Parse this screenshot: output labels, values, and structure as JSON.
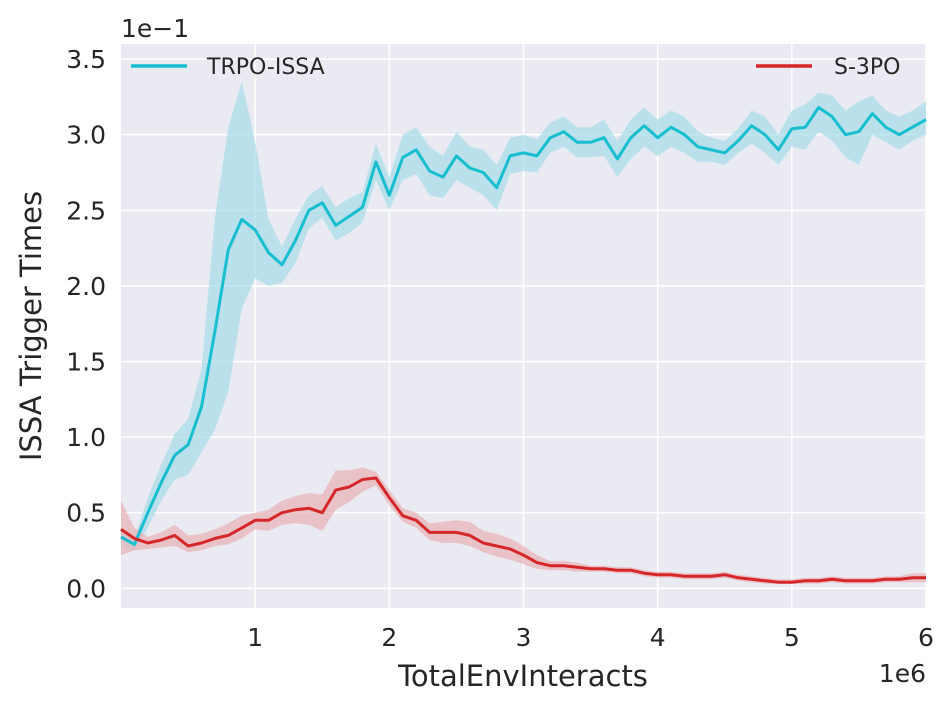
{
  "chart_data": {
    "type": "line",
    "xlabel": "TotalEnvInteracts",
    "ylabel": "ISSA Trigger Times",
    "x_multiplier": "1e6",
    "y_multiplier": "1e−1",
    "xlim": [
      0.0,
      6.0
    ],
    "ylim": [
      -0.13,
      3.6
    ],
    "x_ticks": [
      1,
      2,
      3,
      4,
      5,
      6
    ],
    "x_tick_labels": [
      "1",
      "2",
      "3",
      "4",
      "5",
      "6"
    ],
    "y_ticks": [
      0.0,
      0.5,
      1.0,
      1.5,
      2.0,
      2.5,
      3.0,
      3.5
    ],
    "y_tick_labels": [
      "0.0",
      "0.5",
      "1.0",
      "1.5",
      "2.0",
      "2.5",
      "3.0",
      "3.5"
    ],
    "grid": true,
    "legend": [
      {
        "name": "TRPO-ISSA",
        "placement": "top-left"
      },
      {
        "name": "S-3PO",
        "placement": "top-right"
      }
    ],
    "series": [
      {
        "name": "TRPO-ISSA",
        "color": "#17becf",
        "band_color": "#a9dde8",
        "x": [
          0.0,
          0.1,
          0.2,
          0.3,
          0.4,
          0.5,
          0.6,
          0.7,
          0.8,
          0.9,
          1.0,
          1.1,
          1.2,
          1.3,
          1.4,
          1.5,
          1.6,
          1.7,
          1.8,
          1.9,
          2.0,
          2.1,
          2.2,
          2.3,
          2.4,
          2.5,
          2.6,
          2.7,
          2.8,
          2.9,
          3.0,
          3.1,
          3.2,
          3.3,
          3.4,
          3.5,
          3.6,
          3.7,
          3.8,
          3.9,
          4.0,
          4.1,
          4.2,
          4.3,
          4.4,
          4.5,
          4.6,
          4.7,
          4.8,
          4.9,
          5.0,
          5.1,
          5.2,
          5.3,
          5.4,
          5.5,
          5.6,
          5.7,
          5.8,
          5.9,
          6.0
        ],
        "y": [
          0.34,
          0.29,
          0.5,
          0.7,
          0.88,
          0.95,
          1.2,
          1.7,
          2.24,
          2.44,
          2.37,
          2.22,
          2.14,
          2.3,
          2.5,
          2.55,
          2.4,
          2.46,
          2.52,
          2.82,
          2.6,
          2.85,
          2.9,
          2.76,
          2.72,
          2.86,
          2.78,
          2.75,
          2.65,
          2.86,
          2.88,
          2.86,
          2.98,
          3.02,
          2.95,
          2.95,
          2.98,
          2.84,
          2.98,
          3.06,
          2.98,
          3.05,
          3.0,
          2.92,
          2.9,
          2.88,
          2.96,
          3.06,
          3.0,
          2.9,
          3.04,
          3.05,
          3.18,
          3.12,
          3.0,
          3.02,
          3.14,
          3.05,
          3.0,
          3.05,
          3.1
        ],
        "y_lower": [
          0.28,
          0.25,
          0.4,
          0.58,
          0.72,
          0.75,
          0.9,
          1.05,
          1.3,
          1.85,
          2.05,
          2.0,
          2.02,
          2.15,
          2.38,
          2.45,
          2.3,
          2.35,
          2.42,
          2.7,
          2.5,
          2.7,
          2.74,
          2.6,
          2.58,
          2.7,
          2.65,
          2.6,
          2.5,
          2.74,
          2.76,
          2.75,
          2.88,
          2.92,
          2.85,
          2.85,
          2.86,
          2.72,
          2.84,
          2.92,
          2.86,
          2.92,
          2.88,
          2.82,
          2.82,
          2.8,
          2.88,
          2.94,
          2.88,
          2.8,
          2.92,
          2.9,
          3.02,
          2.96,
          2.85,
          2.8,
          3.0,
          2.95,
          2.9,
          2.96,
          3.0
        ],
        "y_upper": [
          0.4,
          0.33,
          0.6,
          0.82,
          1.02,
          1.12,
          1.45,
          2.45,
          3.05,
          3.35,
          2.95,
          2.44,
          2.26,
          2.44,
          2.6,
          2.66,
          2.52,
          2.58,
          2.62,
          2.94,
          2.72,
          3.0,
          3.05,
          2.92,
          2.86,
          3.02,
          2.92,
          2.9,
          2.8,
          2.98,
          3.0,
          2.97,
          3.08,
          3.12,
          3.05,
          3.05,
          3.1,
          2.96,
          3.1,
          3.18,
          3.1,
          3.16,
          3.12,
          3.02,
          2.98,
          2.96,
          3.04,
          3.16,
          3.12,
          3.0,
          3.16,
          3.2,
          3.28,
          3.26,
          3.16,
          3.22,
          3.26,
          3.16,
          3.12,
          3.16,
          3.22
        ]
      },
      {
        "name": "S-3PO",
        "color": "#d62728",
        "band_color": "#e8b4b8",
        "x": [
          0.0,
          0.1,
          0.2,
          0.3,
          0.4,
          0.5,
          0.6,
          0.7,
          0.8,
          0.9,
          1.0,
          1.1,
          1.2,
          1.3,
          1.4,
          1.5,
          1.6,
          1.7,
          1.8,
          1.9,
          2.0,
          2.1,
          2.2,
          2.3,
          2.4,
          2.5,
          2.6,
          2.7,
          2.8,
          2.9,
          3.0,
          3.1,
          3.2,
          3.3,
          3.4,
          3.5,
          3.6,
          3.7,
          3.8,
          3.9,
          4.0,
          4.1,
          4.2,
          4.3,
          4.4,
          4.5,
          4.6,
          4.7,
          4.8,
          4.9,
          5.0,
          5.1,
          5.2,
          5.3,
          5.4,
          5.5,
          5.6,
          5.7,
          5.8,
          5.9,
          6.0
        ],
        "y": [
          0.39,
          0.33,
          0.3,
          0.32,
          0.35,
          0.28,
          0.3,
          0.33,
          0.35,
          0.4,
          0.45,
          0.45,
          0.5,
          0.52,
          0.53,
          0.5,
          0.65,
          0.67,
          0.72,
          0.73,
          0.6,
          0.48,
          0.45,
          0.37,
          0.37,
          0.37,
          0.35,
          0.3,
          0.28,
          0.26,
          0.22,
          0.17,
          0.15,
          0.15,
          0.14,
          0.13,
          0.13,
          0.12,
          0.12,
          0.1,
          0.09,
          0.09,
          0.08,
          0.08,
          0.08,
          0.09,
          0.07,
          0.06,
          0.05,
          0.04,
          0.04,
          0.05,
          0.05,
          0.06,
          0.05,
          0.05,
          0.05,
          0.06,
          0.06,
          0.07,
          0.07
        ],
        "y_lower": [
          0.22,
          0.25,
          0.26,
          0.27,
          0.28,
          0.24,
          0.25,
          0.28,
          0.29,
          0.33,
          0.39,
          0.38,
          0.42,
          0.43,
          0.42,
          0.38,
          0.52,
          0.57,
          0.64,
          0.68,
          0.55,
          0.44,
          0.4,
          0.32,
          0.3,
          0.3,
          0.28,
          0.24,
          0.21,
          0.19,
          0.16,
          0.13,
          0.12,
          0.12,
          0.11,
          0.11,
          0.11,
          0.1,
          0.1,
          0.08,
          0.07,
          0.07,
          0.06,
          0.06,
          0.06,
          0.07,
          0.05,
          0.04,
          0.03,
          0.03,
          0.03,
          0.03,
          0.03,
          0.04,
          0.03,
          0.03,
          0.03,
          0.04,
          0.04,
          0.04,
          0.04
        ],
        "y_upper": [
          0.58,
          0.4,
          0.34,
          0.37,
          0.42,
          0.35,
          0.36,
          0.39,
          0.43,
          0.48,
          0.5,
          0.52,
          0.58,
          0.61,
          0.63,
          0.62,
          0.78,
          0.78,
          0.8,
          0.77,
          0.65,
          0.53,
          0.5,
          0.43,
          0.44,
          0.45,
          0.44,
          0.38,
          0.36,
          0.33,
          0.28,
          0.22,
          0.18,
          0.18,
          0.17,
          0.15,
          0.15,
          0.14,
          0.14,
          0.12,
          0.11,
          0.11,
          0.1,
          0.1,
          0.1,
          0.11,
          0.09,
          0.08,
          0.07,
          0.06,
          0.06,
          0.07,
          0.07,
          0.08,
          0.07,
          0.07,
          0.07,
          0.08,
          0.08,
          0.1,
          0.1
        ]
      }
    ]
  }
}
